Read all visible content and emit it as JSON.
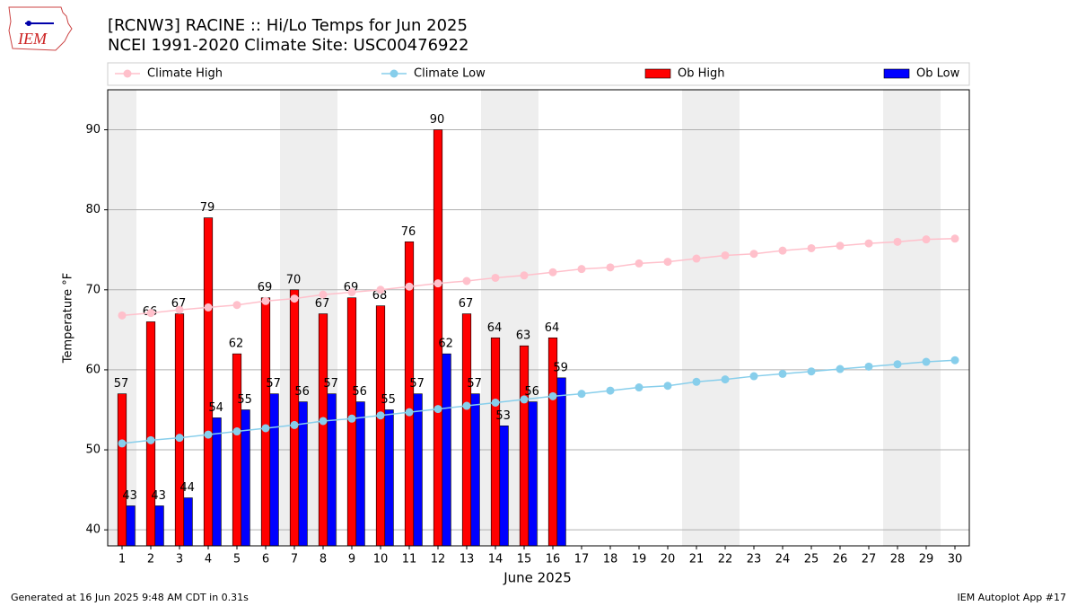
{
  "chart_data": {
    "type": "bar",
    "title": "[RCNW3] RACINE :: Hi/Lo Temps for Jun 2025",
    "subtitle": "NCEI 1991-2020 Climate Site: USC00476922",
    "logo_text": "IEM",
    "xlabel": "June 2025",
    "ylabel": "Temperature °F",
    "footer_left": "Generated at 16 Jun 2025 9:48 AM CDT in 0.31s",
    "footer_right": "IEM Autoplot App #17",
    "x": [
      1,
      2,
      3,
      4,
      5,
      6,
      7,
      8,
      9,
      10,
      11,
      12,
      13,
      14,
      15,
      16,
      17,
      18,
      19,
      20,
      21,
      22,
      23,
      24,
      25,
      26,
      27,
      28,
      29,
      30
    ],
    "xlim": [
      0.5,
      30.5
    ],
    "xticks": [
      1,
      2,
      3,
      4,
      5,
      6,
      7,
      8,
      9,
      10,
      11,
      12,
      13,
      14,
      15,
      16,
      17,
      18,
      19,
      20,
      21,
      22,
      23,
      24,
      25,
      26,
      27,
      28,
      29,
      30
    ],
    "ylim": [
      38,
      95
    ],
    "yticks": [
      40,
      50,
      60,
      70,
      80,
      90
    ],
    "grid": true,
    "shaded_days": [
      1,
      7,
      8,
      14,
      15,
      21,
      22,
      28,
      29
    ],
    "series": [
      {
        "name": "Climate High",
        "type": "line",
        "color": "#ffc0cb",
        "values": [
          66.8,
          67.1,
          67.5,
          67.8,
          68.1,
          68.6,
          68.9,
          69.4,
          69.7,
          70.0,
          70.4,
          70.8,
          71.1,
          71.5,
          71.8,
          72.2,
          72.6,
          72.8,
          73.3,
          73.5,
          73.9,
          74.3,
          74.5,
          74.9,
          75.2,
          75.5,
          75.8,
          76.0,
          76.3,
          76.4
        ]
      },
      {
        "name": "Climate Low",
        "type": "line",
        "color": "#87ceeb",
        "values": [
          50.8,
          51.2,
          51.5,
          51.9,
          52.3,
          52.7,
          53.1,
          53.6,
          53.9,
          54.3,
          54.7,
          55.1,
          55.5,
          55.9,
          56.3,
          56.7,
          57.0,
          57.4,
          57.8,
          58.0,
          58.5,
          58.8,
          59.2,
          59.5,
          59.8,
          60.1,
          60.4,
          60.7,
          61.0,
          61.2
        ]
      },
      {
        "name": "Ob High",
        "type": "bar",
        "color": "#ff0000",
        "values": [
          57,
          66,
          67,
          79,
          62,
          69,
          70,
          67,
          69,
          68,
          76,
          90,
          67,
          64,
          63,
          64,
          null,
          null,
          null,
          null,
          null,
          null,
          null,
          null,
          null,
          null,
          null,
          null,
          null,
          null
        ]
      },
      {
        "name": "Ob Low",
        "type": "bar",
        "color": "#0000ff",
        "values": [
          43,
          43,
          44,
          54,
          55,
          57,
          56,
          57,
          56,
          55,
          57,
          62,
          57,
          53,
          56,
          59,
          null,
          null,
          null,
          null,
          null,
          null,
          null,
          null,
          null,
          null,
          null,
          null,
          null,
          null
        ]
      }
    ]
  }
}
